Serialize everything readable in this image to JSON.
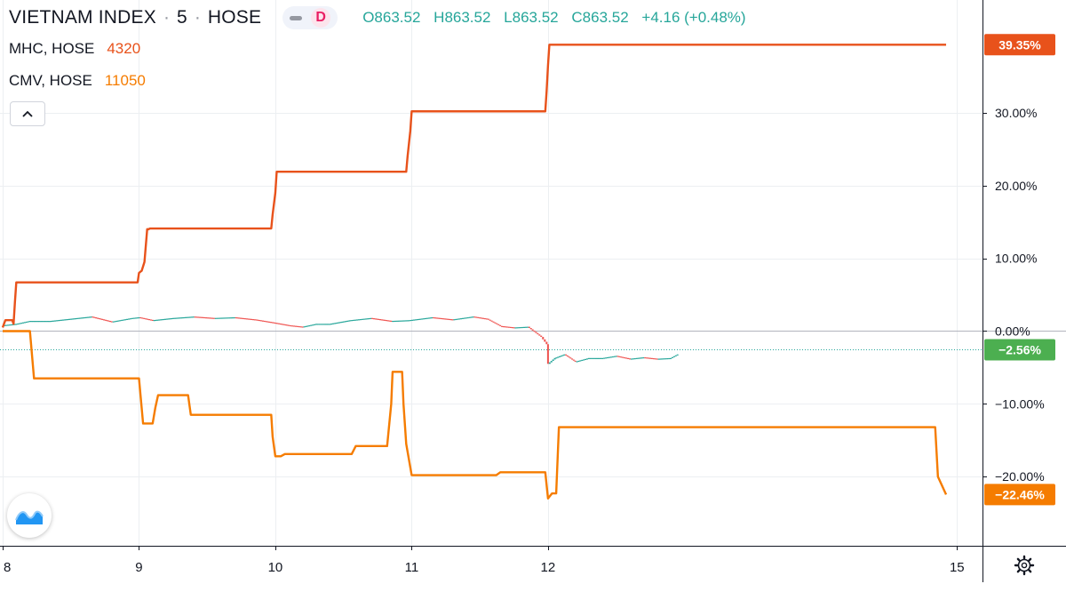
{
  "header": {
    "symbol": "VIETNAM INDEX",
    "interval": "5",
    "exchange": "HOSE",
    "mode_label": "D",
    "ohlc": {
      "o_label": "O",
      "o": "863.52",
      "h_label": "H",
      "h": "863.52",
      "l_label": "L",
      "l": "863.52",
      "c_label": "C",
      "c": "863.52",
      "change": "+4.16 (+0.48%)"
    }
  },
  "compare": [
    {
      "name": "MHC, HOSE",
      "value": "4320",
      "color": "#e8521b"
    },
    {
      "name": "CMV, HOSE",
      "value": "11050",
      "color": "#f57c00"
    }
  ],
  "colors": {
    "main_up": "#26a69a",
    "main_down": "#ef5350",
    "grid": "#eceff2",
    "axis_text": "#131722",
    "zero_line": "#b2b5be"
  },
  "icons": {
    "collapse": "chevron-up-icon",
    "logo": "tradingview-logo-icon",
    "settings": "gear-icon"
  },
  "chart_data": {
    "type": "line",
    "y_unit": "percent change",
    "ylim": [
      -29.5,
      45.5
    ],
    "xlim": [
      8,
      15.2
    ],
    "y_ticks": [
      30,
      20,
      10,
      0,
      -10,
      -20
    ],
    "y_tick_labels": [
      "30.00%",
      "20.00%",
      "10.00%",
      "0.00%",
      "−10.00%",
      "−20.00%"
    ],
    "x_ticks": [
      8,
      9,
      10,
      11,
      12,
      15
    ],
    "x_tick_labels": [
      "8",
      "9",
      "10",
      "11",
      "12",
      "15"
    ],
    "grid": true,
    "series": [
      {
        "name": "MHC, HOSE",
        "color": "#e8521b",
        "last_label": "39.35%",
        "last_value": 39.35,
        "x": [
          8.0,
          8.02,
          8.07,
          8.08,
          8.09,
          8.1,
          8.99,
          9.0,
          9.02,
          9.04,
          9.06,
          9.07,
          9.08,
          9.97,
          9.98,
          10.0,
          10.01,
          10.02,
          10.03,
          10.96,
          10.97,
          10.99,
          11.0,
          11.01,
          11.02,
          11.98,
          11.99,
          12.0,
          12.01,
          12.02,
          12.03,
          14.92
        ],
        "y": [
          0.5,
          1.5,
          1.5,
          1.0,
          4.0,
          6.7,
          6.7,
          8.0,
          8.3,
          9.5,
          14.0,
          14.0,
          14.1,
          14.1,
          16.0,
          19.0,
          21.9,
          21.9,
          21.9,
          21.9,
          24.0,
          27.5,
          30.2,
          30.2,
          30.2,
          30.2,
          33.0,
          36.5,
          39.35,
          39.35,
          39.35,
          39.35
        ]
      },
      {
        "name": "CMV, HOSE",
        "color": "#f57c00",
        "last_label": "−22.46%",
        "last_value": -22.46,
        "x": [
          8.0,
          8.2,
          8.23,
          9.0,
          9.03,
          9.1,
          9.12,
          9.14,
          9.36,
          9.38,
          9.4,
          9.97,
          9.98,
          10.0,
          10.04,
          10.07,
          10.56,
          10.59,
          10.82,
          10.85,
          10.86,
          10.93,
          10.94,
          10.96,
          11.0,
          11.62,
          11.65,
          11.98,
          12.0,
          12.03,
          12.06,
          12.08,
          14.84,
          14.86,
          14.92
        ],
        "y": [
          0.0,
          0.0,
          -6.5,
          -6.5,
          -12.7,
          -12.7,
          -10.5,
          -8.8,
          -8.8,
          -11.5,
          -11.5,
          -11.5,
          -14.5,
          -17.2,
          -17.2,
          -16.9,
          -16.9,
          -15.8,
          -15.8,
          -10.0,
          -5.6,
          -5.6,
          -10.0,
          -15.5,
          -19.8,
          -19.8,
          -19.4,
          -19.4,
          -23.0,
          -22.3,
          -22.3,
          -13.2,
          -13.2,
          -20.0,
          -22.46
        ]
      },
      {
        "name": "VIETNAM INDEX, 5, HOSE",
        "type": "candles",
        "last_label": "−2.56%",
        "last_value": -2.56,
        "x": [
          8.0,
          8.1,
          8.2,
          8.35,
          8.5,
          8.65,
          8.8,
          8.95,
          9.0,
          9.1,
          9.25,
          9.4,
          9.55,
          9.7,
          9.85,
          9.98,
          10.1,
          10.2,
          10.3,
          10.4,
          10.55,
          10.7,
          10.85,
          10.98,
          11.15,
          11.3,
          11.45,
          11.55,
          11.65,
          11.75,
          11.85,
          11.95,
          11.99,
          12.0,
          12.05,
          12.12,
          12.2,
          12.3,
          12.4,
          12.5,
          12.6,
          12.7,
          12.8,
          12.9,
          12.95
        ],
        "y": [
          0.8,
          1.0,
          1.4,
          1.4,
          1.7,
          2.0,
          1.3,
          1.8,
          1.9,
          1.5,
          1.8,
          2.0,
          1.8,
          1.9,
          1.6,
          1.2,
          0.8,
          0.6,
          1.0,
          1.0,
          1.5,
          1.8,
          1.4,
          1.5,
          1.9,
          1.6,
          2.0,
          1.7,
          0.7,
          0.5,
          0.6,
          -0.8,
          -1.8,
          -4.5,
          -3.7,
          -3.2,
          -4.2,
          -3.7,
          -3.7,
          -3.4,
          -3.8,
          -3.6,
          -3.8,
          -3.7,
          -3.2
        ]
      }
    ]
  }
}
